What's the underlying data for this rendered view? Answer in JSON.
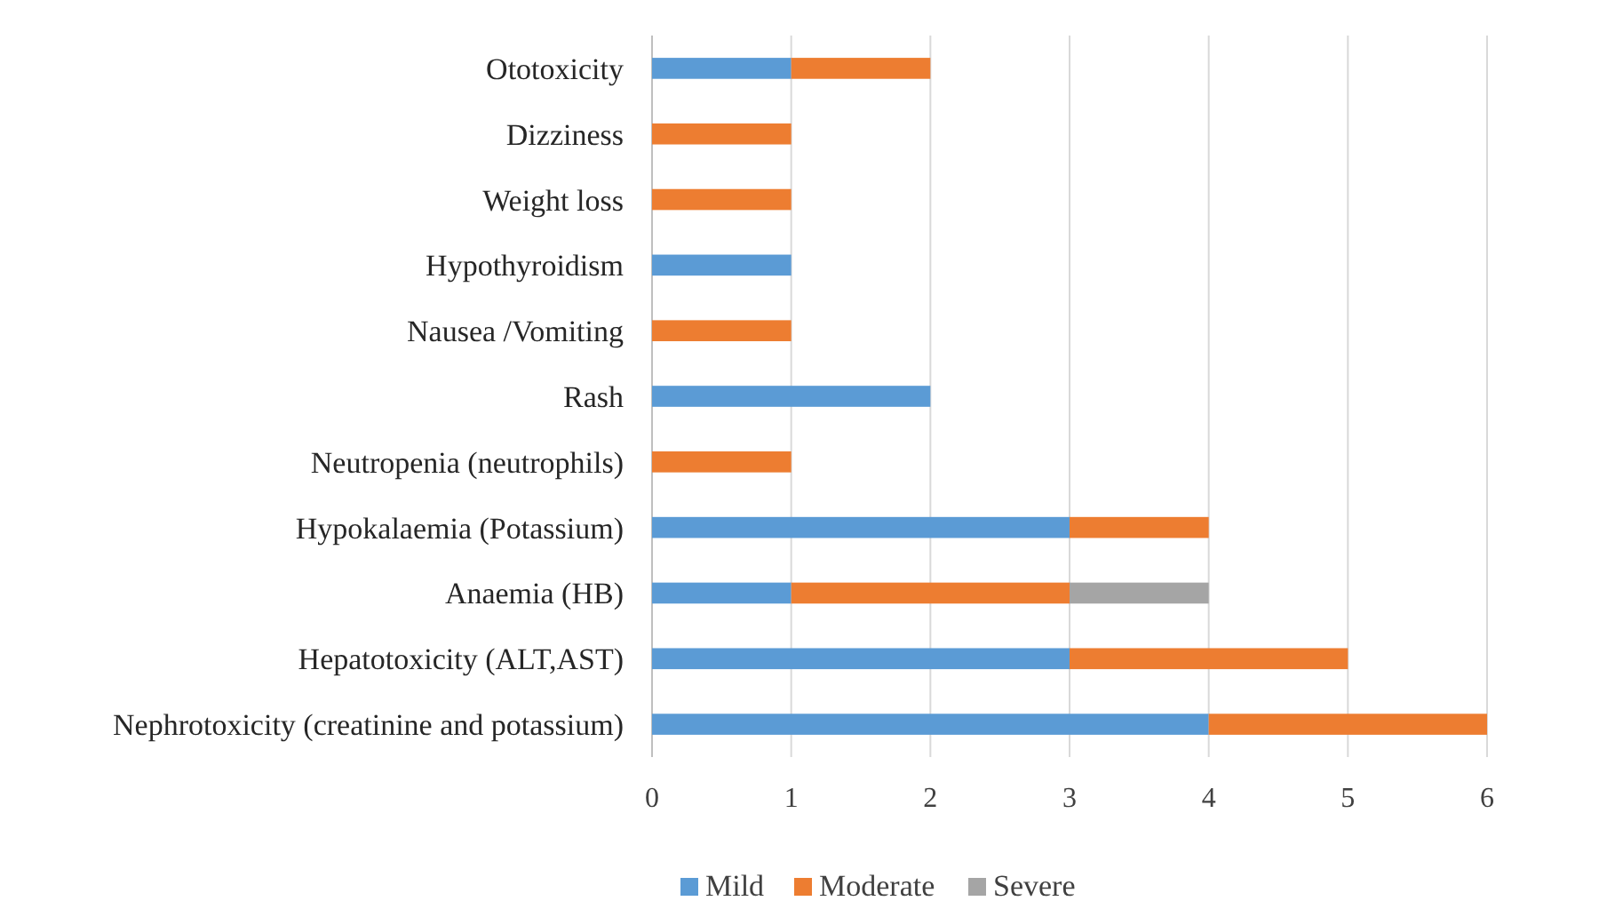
{
  "chart_data": {
    "type": "bar",
    "orientation": "horizontal",
    "stacked": true,
    "categories": [
      "Ototoxicity",
      "Dizziness",
      "Weight loss",
      "Hypothyroidism",
      "Nausea /Vomiting",
      "Rash",
      "Neutropenia (neutrophils)",
      "Hypokalaemia (Potassium)",
      "Anaemia (HB)",
      "Hepatotoxicity (ALT,AST)",
      "Nephrotoxicity (creatinine and potassium)"
    ],
    "series": [
      {
        "name": "Mild",
        "color": "#5b9bd5",
        "values": [
          1,
          null,
          null,
          1,
          null,
          2,
          null,
          3,
          1,
          3,
          4
        ]
      },
      {
        "name": "Moderate",
        "color": "#ed7d31",
        "values": [
          1,
          1,
          1,
          null,
          1,
          null,
          1,
          1,
          2,
          2,
          2
        ]
      },
      {
        "name": "Severe",
        "color": "#a5a5a5",
        "values": [
          null,
          null,
          null,
          null,
          null,
          null,
          null,
          null,
          1,
          null,
          null
        ]
      }
    ],
    "xlim": [
      0,
      6
    ],
    "xticks": [
      0,
      1,
      2,
      3,
      4,
      5,
      6
    ],
    "grid": "x",
    "legend": "bottom"
  }
}
